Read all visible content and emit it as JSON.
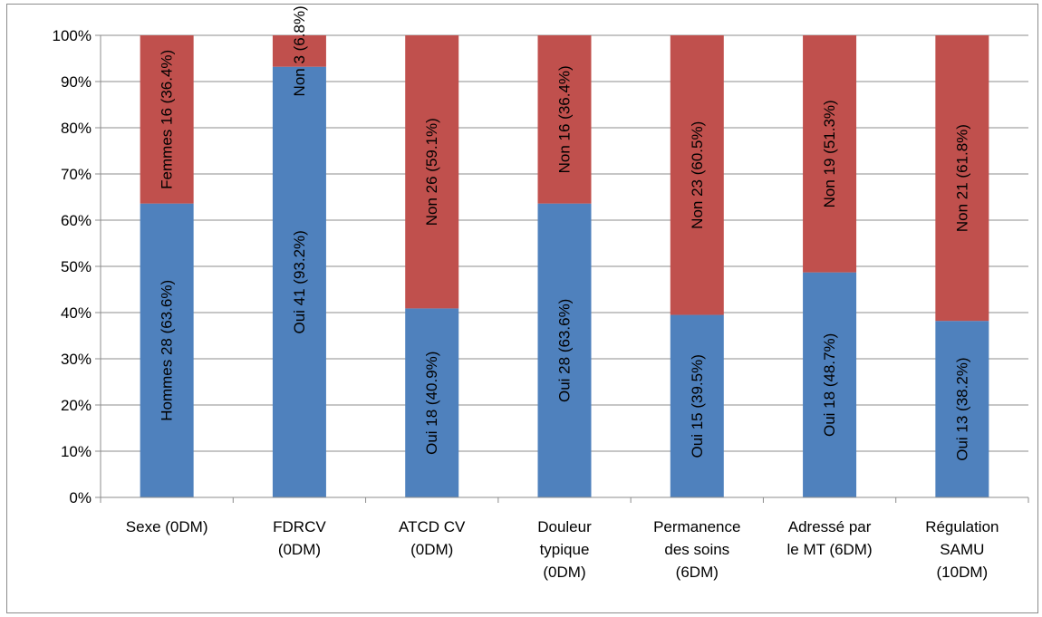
{
  "chart_data": {
    "type": "bar",
    "stacked": true,
    "percent": true,
    "categories": [
      [
        "Sexe (0DM)"
      ],
      [
        "FDRCV",
        "(0DM)"
      ],
      [
        "ATCD CV",
        "(0DM)"
      ],
      [
        "Douleur",
        "typique",
        "(0DM)"
      ],
      [
        "Permanence",
        "des soins",
        "(6DM)"
      ],
      [
        "Adressé par",
        "le MT (6DM)"
      ],
      [
        "Régulation",
        "SAMU",
        "(10DM)"
      ]
    ],
    "series": [
      {
        "color": "#4f81bd",
        "values": [
          63.6,
          93.2,
          40.9,
          63.6,
          39.5,
          48.7,
          38.2
        ],
        "labels": [
          "Hommes 28 (63.6%)",
          "Oui 41 (93.2%)",
          "Oui 18 (40.9%)",
          "Oui 28 (63.6%)",
          "Oui 15 (39.5%)",
          "Oui 18 (48.7%)",
          "Oui 13 (38.2%)"
        ]
      },
      {
        "color": "#c0504d",
        "values": [
          36.4,
          6.8,
          59.1,
          36.4,
          60.5,
          51.3,
          61.8
        ],
        "labels": [
          "Femmes 16 (36.4%)",
          "Non 3 (6.8%)",
          "Non 26 (59.1%)",
          "Non 16 (36.4%)",
          "Non 23 (60.5%)",
          "Non 19 (51.3%)",
          "Non 21 (61.8%)"
        ]
      }
    ],
    "y_ticks": [
      "0%",
      "10%",
      "20%",
      "30%",
      "40%",
      "50%",
      "60%",
      "70%",
      "80%",
      "90%",
      "100%"
    ],
    "ylim": [
      0,
      100
    ],
    "grid": true,
    "legend": "none"
  }
}
